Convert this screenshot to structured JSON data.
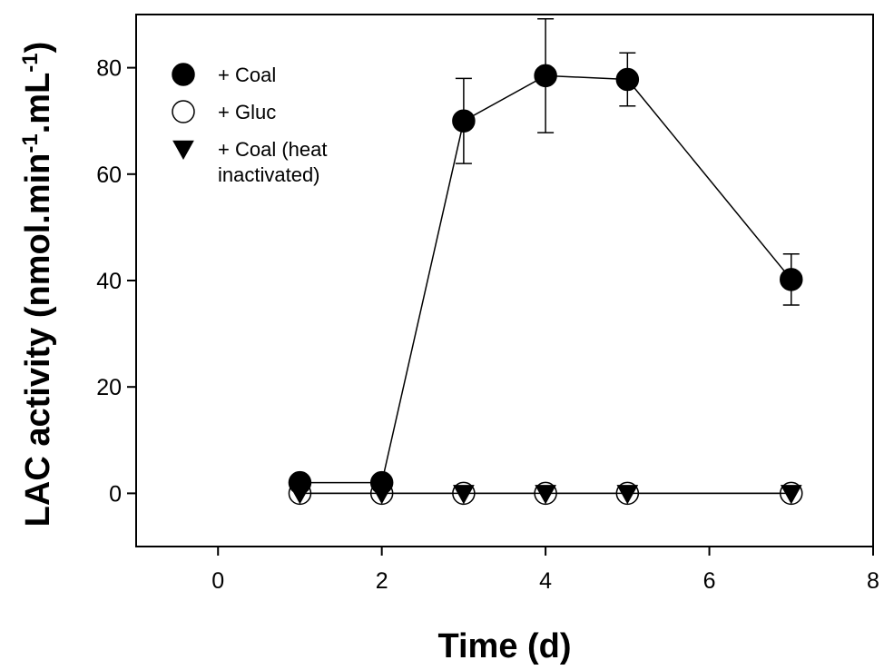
{
  "chart_data": {
    "type": "scatter",
    "xlabel": "Time (d)",
    "ylabel": {
      "main": "LAC activity (nmol.min",
      "sup1": "-1",
      "mid": ".mL",
      "sup2": "-1",
      "end": ")"
    },
    "xlim": [
      -1,
      8
    ],
    "ylim": [
      -10,
      90
    ],
    "xticks": [
      0,
      2,
      4,
      6,
      8
    ],
    "yticks": [
      0,
      20,
      40,
      60,
      80
    ],
    "grid": false,
    "legend_position": "top-left",
    "series": [
      {
        "name": "+ Coal",
        "marker": "filled-circle",
        "x": [
          1,
          2,
          3,
          4,
          5,
          7
        ],
        "y": [
          2,
          2,
          70,
          78.5,
          77.8,
          40.2
        ],
        "error": [
          0,
          0,
          8,
          10.7,
          5,
          4.8
        ]
      },
      {
        "name": "+ Gluc",
        "marker": "open-circle",
        "x": [
          1,
          2,
          3,
          4,
          5,
          7
        ],
        "y": [
          0,
          0,
          0,
          0,
          0,
          0
        ],
        "error": [
          0,
          0,
          0,
          0,
          0,
          0
        ]
      },
      {
        "name": "+ Coal (heat inactivated)",
        "name_lines": [
          "+ Coal (heat",
          "inactivated)"
        ],
        "marker": "filled-triangle-down",
        "x": [
          1,
          2,
          3,
          4,
          5,
          7
        ],
        "y": [
          0,
          0,
          0,
          0,
          0,
          0
        ],
        "error": [
          0,
          0,
          0,
          0,
          0,
          0
        ]
      }
    ]
  }
}
